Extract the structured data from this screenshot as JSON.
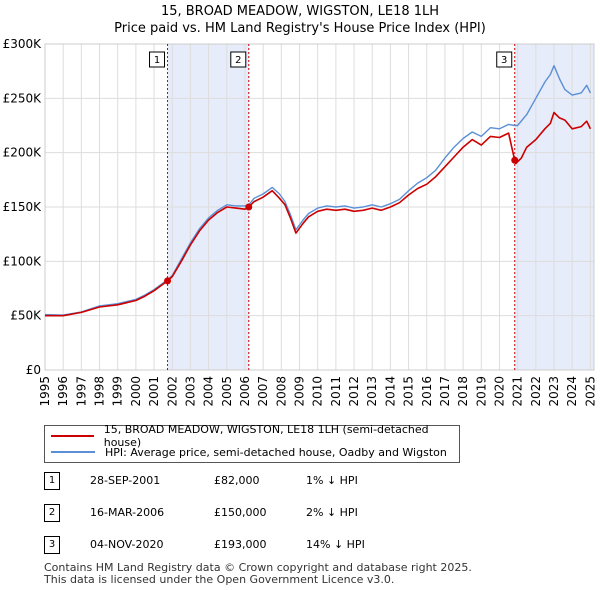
{
  "title_line1": "15, BROAD MEADOW, WIGSTON, LE18 1LH",
  "title_line2": "Price paid vs. HM Land Registry's House Price Index (HPI)",
  "colors": {
    "property": "#cc0000",
    "hpi": "#5b8fd6",
    "shade": "#e6ecfa",
    "sale_line": "#cc0000"
  },
  "chart_data": {
    "type": "line",
    "xlim": [
      1995.0,
      2025.2
    ],
    "ylim": [
      0,
      300000
    ],
    "yticks": [
      0,
      50000,
      100000,
      150000,
      200000,
      250000,
      300000
    ],
    "ytick_labels": [
      "£0",
      "£50K",
      "£100K",
      "£150K",
      "£200K",
      "£250K",
      "£300K"
    ],
    "xtick_labels": [
      "1995",
      "1996",
      "1997",
      "1998",
      "1999",
      "2000",
      "2001",
      "2002",
      "2003",
      "2004",
      "2005",
      "2006",
      "2007",
      "2008",
      "2009",
      "2010",
      "2011",
      "2012",
      "2013",
      "2014",
      "2015",
      "2016",
      "2017",
      "2018",
      "2019",
      "2020",
      "2021",
      "2022",
      "2023",
      "2024",
      "2025"
    ],
    "series": [
      {
        "name": "15, BROAD MEADOW, WIGSTON, LE18 1LH (semi-detached house)",
        "x": [
          1995.0,
          1996.0,
          1997.0,
          1998.0,
          1999.0,
          2000.0,
          2000.5,
          2001.0,
          2001.74,
          2002.0,
          2002.5,
          2003.0,
          2003.5,
          2004.0,
          2004.5,
          2005.0,
          2005.5,
          2006.0,
          2006.21,
          2006.5,
          2007.0,
          2007.5,
          2007.9,
          2008.2,
          2008.5,
          2008.8,
          2009.2,
          2009.5,
          2010.0,
          2010.5,
          2011.0,
          2011.5,
          2012.0,
          2012.5,
          2013.0,
          2013.5,
          2014.0,
          2014.5,
          2015.0,
          2015.5,
          2016.0,
          2016.5,
          2017.0,
          2017.5,
          2018.0,
          2018.5,
          2019.0,
          2019.5,
          2020.0,
          2020.5,
          2020.84,
          2020.9,
          2021.2,
          2021.5,
          2022.0,
          2022.5,
          2022.8,
          2023.0,
          2023.3,
          2023.6,
          2024.0,
          2024.5,
          2024.8,
          2025.0
        ],
        "values": [
          50000,
          50000,
          53000,
          58000,
          60000,
          64000,
          68000,
          73000,
          82000,
          86000,
          100000,
          115000,
          128000,
          138000,
          145000,
          150000,
          149000,
          148000,
          150000,
          155000,
          159000,
          165000,
          158000,
          152000,
          140000,
          126000,
          135000,
          141000,
          146000,
          148000,
          147000,
          148000,
          146000,
          147000,
          149000,
          147000,
          150000,
          154000,
          161000,
          167000,
          171000,
          178000,
          187000,
          196000,
          205000,
          212000,
          207000,
          215000,
          214000,
          218000,
          193000,
          190000,
          195000,
          205000,
          212000,
          222000,
          227000,
          237000,
          232000,
          230000,
          222000,
          224000,
          229000,
          222000
        ]
      },
      {
        "name": "HPI: Average price, semi-detached house, Oadby and Wigston",
        "x": [
          1995.0,
          1996.0,
          1997.0,
          1998.0,
          1999.0,
          2000.0,
          2000.5,
          2001.0,
          2001.74,
          2002.0,
          2002.5,
          2003.0,
          2003.5,
          2004.0,
          2004.5,
          2005.0,
          2005.5,
          2006.0,
          2006.21,
          2006.5,
          2007.0,
          2007.5,
          2007.9,
          2008.2,
          2008.5,
          2008.8,
          2009.2,
          2009.5,
          2010.0,
          2010.5,
          2011.0,
          2011.5,
          2012.0,
          2012.5,
          2013.0,
          2013.5,
          2014.0,
          2014.5,
          2015.0,
          2015.5,
          2016.0,
          2016.5,
          2017.0,
          2017.5,
          2018.0,
          2018.5,
          2019.0,
          2019.5,
          2020.0,
          2020.5,
          2020.84,
          2021.0,
          2021.5,
          2022.0,
          2022.5,
          2022.8,
          2023.0,
          2023.3,
          2023.6,
          2024.0,
          2024.5,
          2024.8,
          2025.0
        ],
        "values": [
          51000,
          50500,
          53500,
          59000,
          61000,
          65000,
          69000,
          74000,
          83000,
          87000,
          102000,
          117000,
          130000,
          140000,
          147000,
          152000,
          151000,
          151000,
          152000,
          158000,
          162000,
          168000,
          162000,
          155000,
          143000,
          129000,
          138000,
          144000,
          149000,
          151000,
          150000,
          151000,
          149000,
          150000,
          152000,
          150000,
          153000,
          157000,
          165000,
          172000,
          177000,
          184000,
          195000,
          205000,
          213000,
          219000,
          215000,
          223000,
          222000,
          226000,
          225000,
          225000,
          235000,
          250000,
          265000,
          272000,
          280000,
          268000,
          258000,
          253000,
          255000,
          262000,
          255000
        ]
      }
    ],
    "sales": [
      {
        "label": "1",
        "x": 2001.74,
        "value": 82000
      },
      {
        "label": "2",
        "x": 2006.21,
        "value": 150000
      },
      {
        "label": "3",
        "x": 2020.84,
        "value": 193000
      }
    ],
    "shaded_regions": [
      [
        2001.74,
        2006.21
      ],
      [
        2020.84,
        2025.2
      ]
    ]
  },
  "legend": {
    "property_label": "15, BROAD MEADOW, WIGSTON, LE18 1LH (semi-detached house)",
    "hpi_label": "HPI: Average price, semi-detached house, Oadby and Wigston"
  },
  "sales_table": [
    {
      "num": "1",
      "date": "28-SEP-2001",
      "price": "£82,000",
      "diff": "1% ↓ HPI"
    },
    {
      "num": "2",
      "date": "16-MAR-2006",
      "price": "£150,000",
      "diff": "2% ↓ HPI"
    },
    {
      "num": "3",
      "date": "04-NOV-2020",
      "price": "£193,000",
      "diff": "14% ↓ HPI"
    }
  ],
  "footer_line1": "Contains HM Land Registry data © Crown copyright and database right 2025.",
  "footer_line2": "This data is licensed under the Open Government Licence v3.0."
}
